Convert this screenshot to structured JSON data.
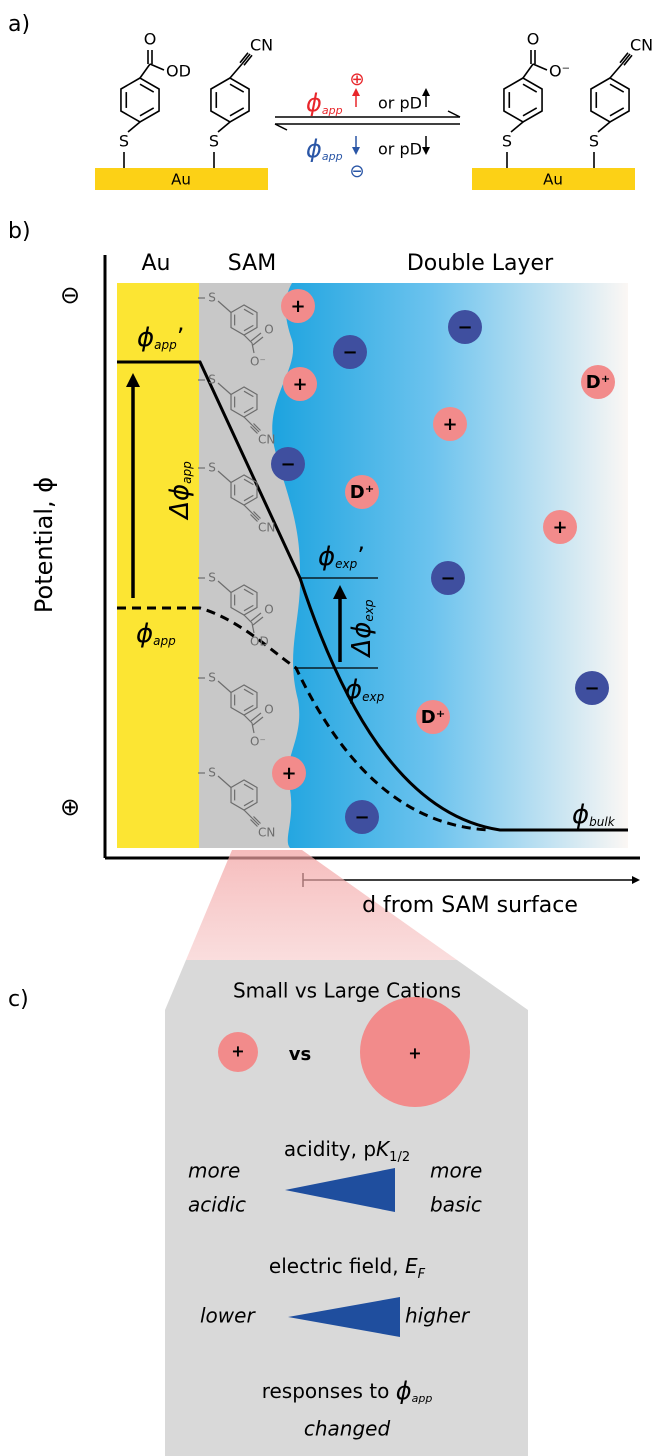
{
  "panel_a": {
    "label": "a)",
    "reactant": {
      "surface": "Au",
      "molecules": [
        {
          "sulfur": "S",
          "groups": [
            "O",
            "OD"
          ]
        },
        {
          "sulfur": "S",
          "groups": [
            "CN"
          ]
        }
      ]
    },
    "product": {
      "surface": "Au",
      "molecules": [
        {
          "sulfur": "S",
          "groups": [
            "O",
            "O⁻"
          ]
        },
        {
          "sulfur": "S",
          "groups": [
            "CN"
          ]
        }
      ]
    },
    "forward": {
      "symbol": "ϕ",
      "subscript": "app",
      "condition": "or pD",
      "charge": "⊕",
      "color": "#e8262b"
    },
    "reverse": {
      "symbol": "ϕ",
      "subscript": "app",
      "condition": "or pD",
      "charge": "⊖",
      "color": "#2a56a6"
    }
  },
  "panel_b": {
    "label": "b)",
    "regions": [
      "Au",
      "SAM",
      "Double Layer"
    ],
    "y_axis_label": "Potential, ϕ",
    "top_sign": "⊖",
    "bottom_sign": "⊕",
    "x_axis_label": "d from SAM surface",
    "sam_molecules": [
      {
        "sulfur": "S",
        "groups": [
          "O",
          "O⁻"
        ]
      },
      {
        "sulfur": "S",
        "groups": [
          "CN"
        ]
      },
      {
        "sulfur": "S",
        "groups": [
          "CN"
        ]
      },
      {
        "sulfur": "S",
        "groups": [
          "O",
          "OD"
        ]
      },
      {
        "sulfur": "S",
        "groups": [
          "O",
          "O⁻"
        ]
      },
      {
        "sulfur": "S",
        "groups": [
          "CN"
        ]
      }
    ],
    "ions": [
      {
        "label": "+",
        "color": "#f28b8b"
      },
      {
        "label": "+",
        "color": "#f28b8b"
      },
      {
        "label": "−",
        "color": "#3f4f9f"
      },
      {
        "label": "−",
        "color": "#3f4f9f"
      },
      {
        "label": "D⁺",
        "color": "#f28b8b"
      },
      {
        "label": "+",
        "color": "#f28b8b"
      },
      {
        "label": "−",
        "color": "#3f4f9f"
      },
      {
        "label": "D⁺",
        "color": "#f28b8b"
      },
      {
        "label": "+",
        "color": "#f28b8b"
      },
      {
        "label": "−",
        "color": "#3f4f9f"
      },
      {
        "label": "D⁺",
        "color": "#f28b8b"
      },
      {
        "label": "−",
        "color": "#3f4f9f"
      },
      {
        "label": "+",
        "color": "#f28b8b"
      },
      {
        "label": "−",
        "color": "#3f4f9f"
      }
    ],
    "phi_app_prime": {
      "symbol": "ϕ",
      "subscript": "app",
      "prime": "’"
    },
    "delta_phi_app": {
      "symbol": "Δϕ",
      "subscript": "app"
    },
    "phi_app": {
      "symbol": "ϕ",
      "subscript": "app"
    },
    "phi_exp_prime": {
      "symbol": "ϕ",
      "subscript": "exp",
      "prime": "’"
    },
    "delta_phi_exp": {
      "symbol": "Δϕ",
      "subscript": "exp"
    },
    "phi_exp": {
      "symbol": "ϕ",
      "subscript": "exp"
    },
    "phi_bulk": {
      "symbol": "ϕ",
      "subscript": "bulk"
    }
  },
  "panel_c": {
    "label": "c)",
    "title": "Small vs Large Cations",
    "small_ion": {
      "label": "+",
      "color": "#f28b8b"
    },
    "comparison": "vs",
    "large_ion": {
      "label": "+",
      "color": "#f28b8b"
    },
    "acidity": {
      "title": "acidity, p",
      "italic": "K",
      "subscript": "1/2",
      "left": [
        "more",
        "acidic"
      ],
      "right": [
        "more",
        "basic"
      ]
    },
    "field": {
      "title": "electric field, ",
      "italic": "E",
      "subscript": "F",
      "left": "lower",
      "right": "higher"
    },
    "response": {
      "text": "responses to ",
      "symbol": "ϕ",
      "subscript": "app",
      "last": "changed"
    },
    "wedge_color": "#1f4e9e"
  }
}
